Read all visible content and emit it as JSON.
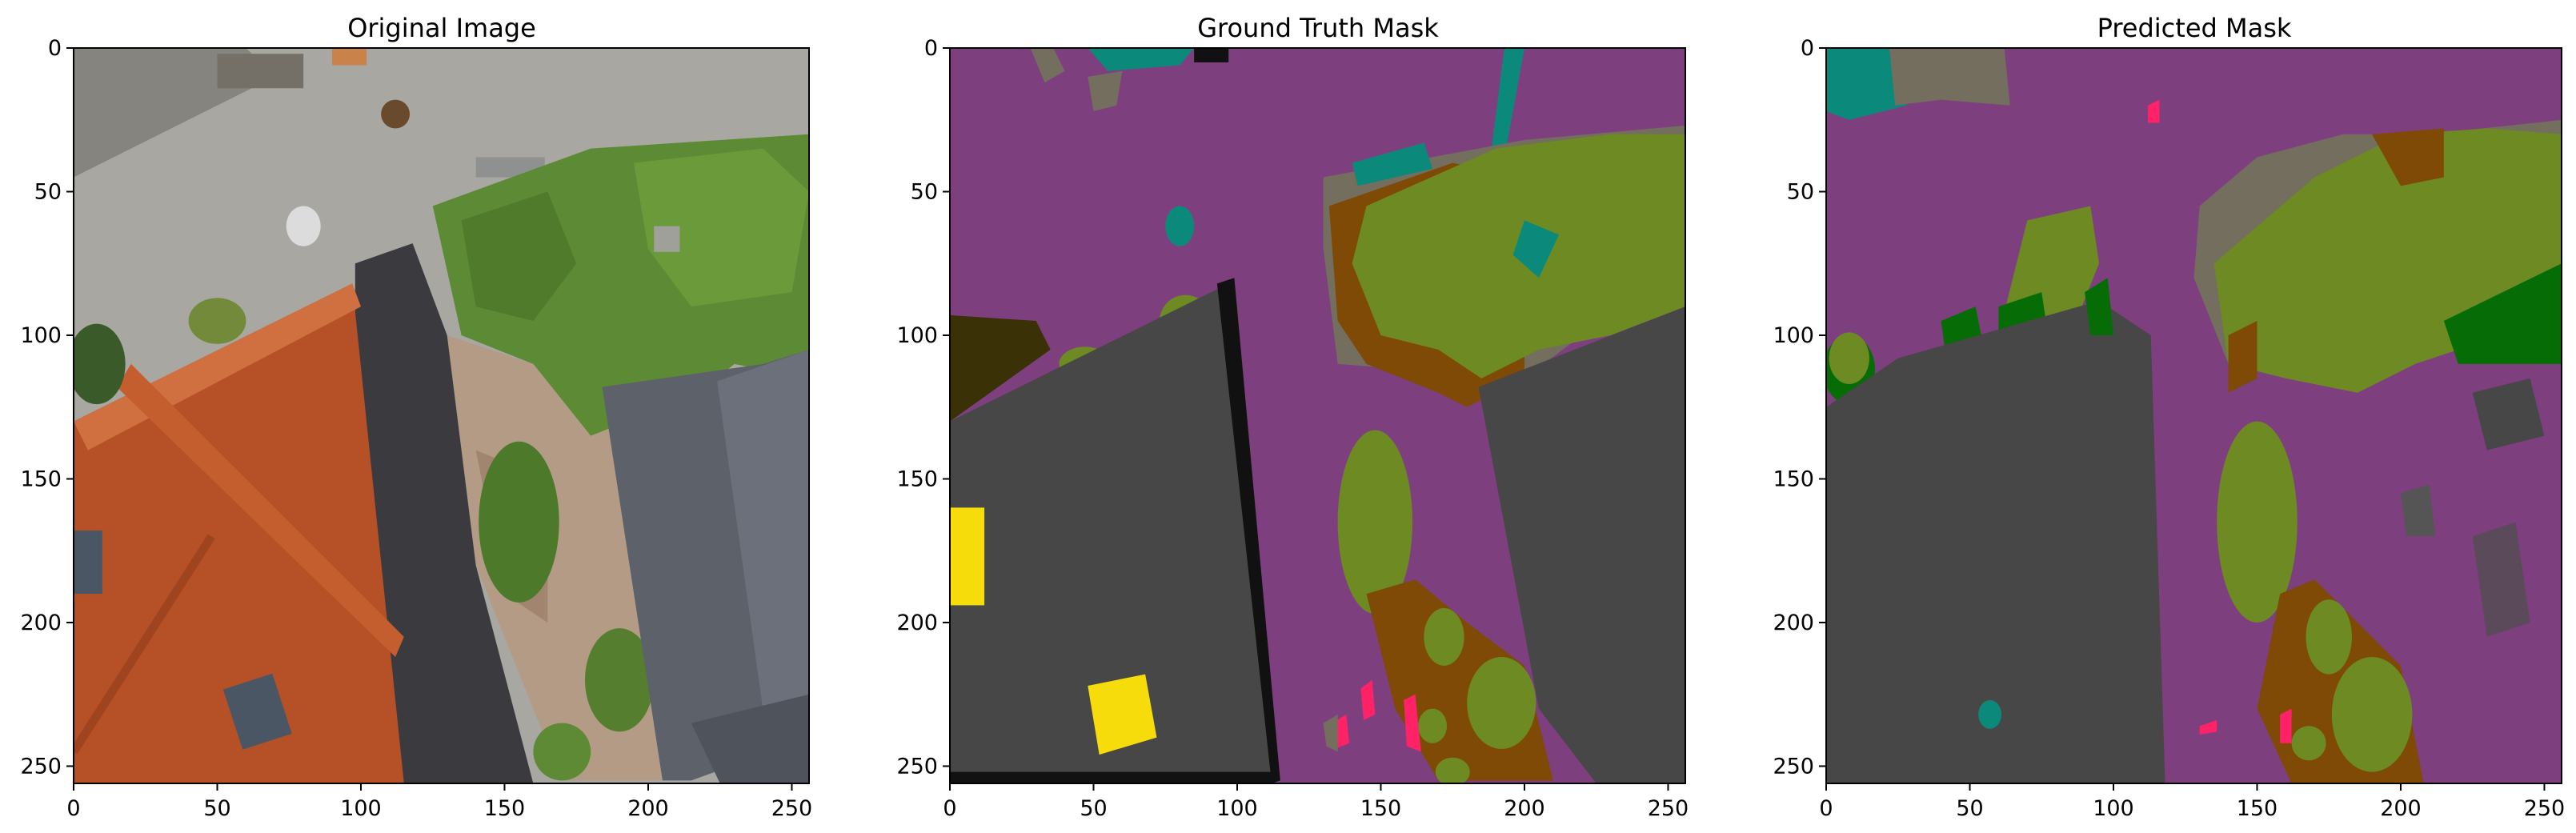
{
  "colors": {
    "class_palette": {
      "magenta_road": "#7e3f7f",
      "dark_gray_roof": "#474747",
      "olive_vegetation": "#6d8b22",
      "brown_soil": "#7e4a06",
      "dark_green_tree": "#066d06",
      "teal_object": "#0b8a7c",
      "gray_brown": "#736e5e",
      "yellow_object": "#f7dc0c",
      "pink_object": "#ff2266",
      "black_void": "#111111",
      "dark_olive": "#3a3206"
    },
    "photo": {
      "asphalt": "#a8a7a2",
      "roof_tile": "#b65027",
      "grass": "#5d8a34",
      "slate_roof": "#5d616a",
      "gravel": "#b39b86"
    }
  },
  "chart_data": [
    {
      "type": "heatmap",
      "title": "Original Image",
      "xlim": [
        0,
        256
      ],
      "ylim": [
        256,
        0
      ],
      "xticks": [
        0,
        50,
        100,
        150,
        200,
        250
      ],
      "yticks": [
        0,
        50,
        100,
        150,
        200,
        250
      ],
      "grid": false
    },
    {
      "type": "heatmap",
      "title": "Ground Truth Mask",
      "xlim": [
        0,
        256
      ],
      "ylim": [
        256,
        0
      ],
      "xticks": [
        0,
        50,
        100,
        150,
        200,
        250
      ],
      "yticks": [
        0,
        50,
        100,
        150,
        200,
        250
      ],
      "grid": false
    },
    {
      "type": "heatmap",
      "title": "Predicted Mask",
      "xlim": [
        0,
        256
      ],
      "ylim": [
        256,
        0
      ],
      "xticks": [
        0,
        50,
        100,
        150,
        200,
        250
      ],
      "yticks": [
        0,
        50,
        100,
        150,
        200,
        250
      ],
      "grid": false
    }
  ]
}
